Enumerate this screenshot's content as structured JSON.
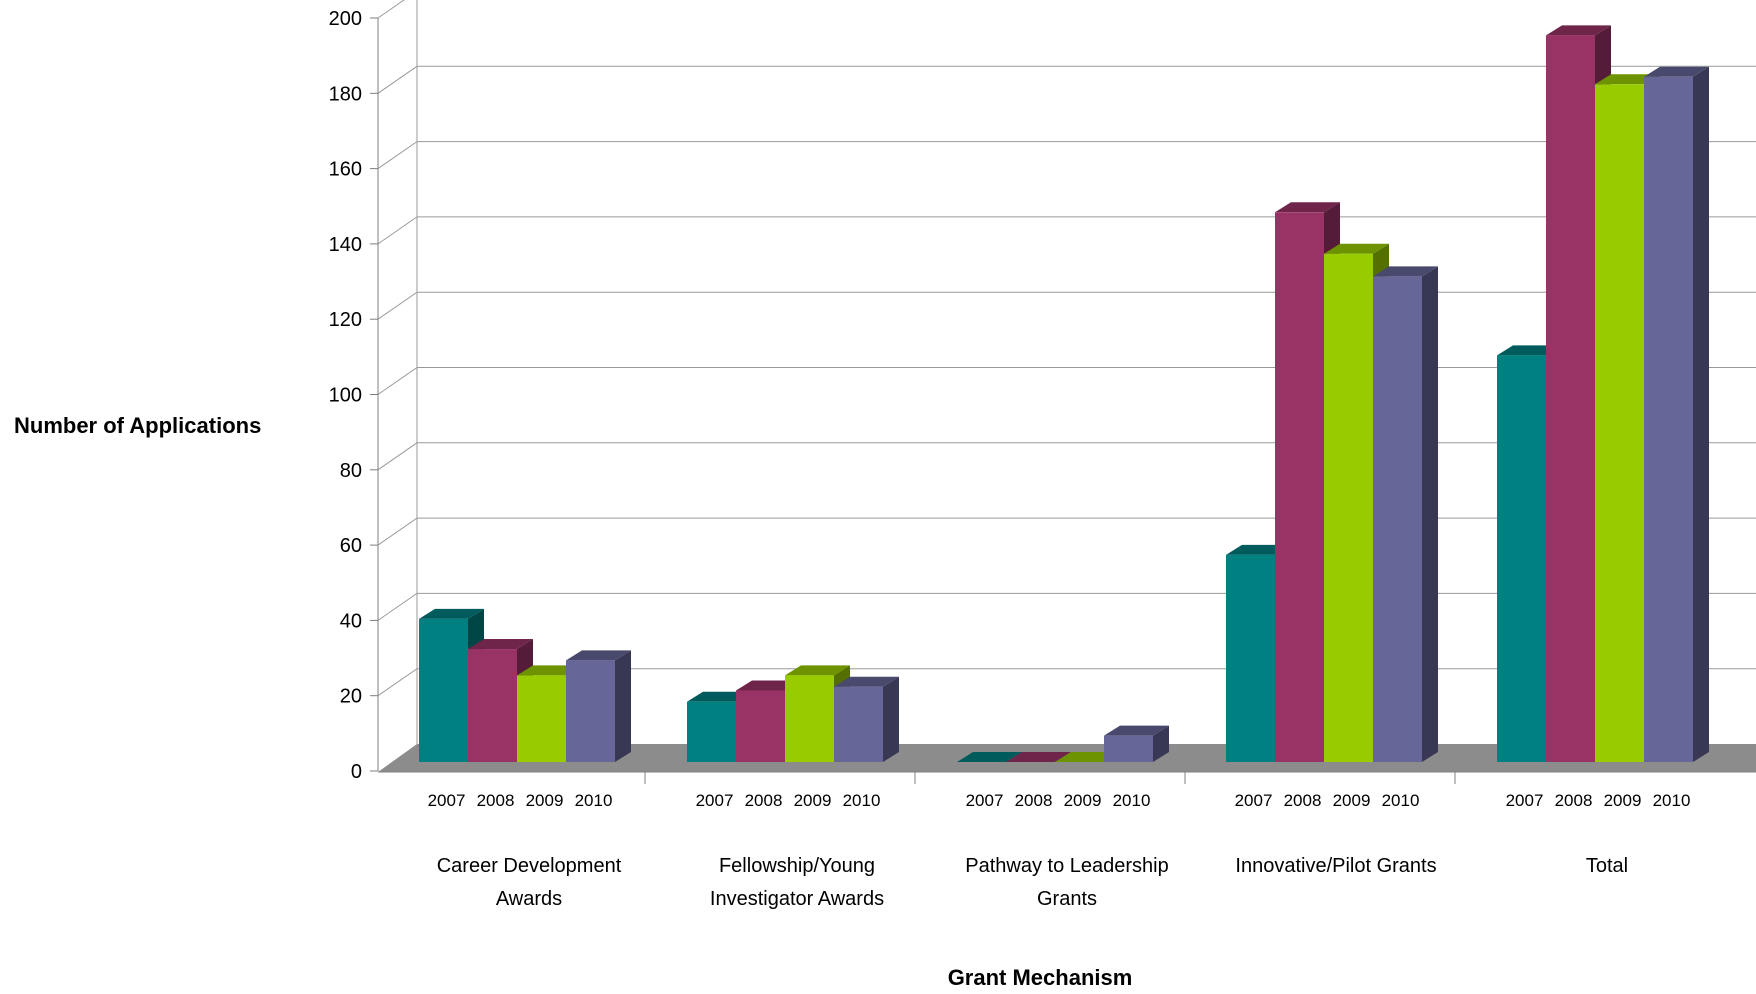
{
  "chart_data": {
    "type": "bar",
    "style": "3d-clustered",
    "xlabel": "Grant Mechanism",
    "ylabel": "Number of Applications",
    "ylim": [
      0,
      200
    ],
    "y_ticks": [
      "0",
      "20",
      "40",
      "60",
      "80",
      "100",
      "120",
      "140",
      "160",
      "180",
      "200"
    ],
    "grid": true,
    "categories": [
      {
        "lines": [
          "Career Development",
          "Awards"
        ]
      },
      {
        "lines": [
          "Fellowship/Young",
          "Investigator Awards"
        ]
      },
      {
        "lines": [
          "Pathway to Leadership",
          "Grants"
        ]
      },
      {
        "lines": [
          "Innovative/Pilot Grants"
        ]
      },
      {
        "lines": [
          "Total"
        ]
      }
    ],
    "years": [
      "2007",
      "2008",
      "2009",
      "2010"
    ],
    "series": [
      {
        "year": "2007",
        "color": "#008080",
        "values": [
          38,
          16,
          0,
          55,
          108
        ]
      },
      {
        "year": "2008",
        "color": "#993366",
        "values": [
          30,
          19,
          0,
          146,
          193
        ]
      },
      {
        "year": "2009",
        "color": "#99CC00",
        "values": [
          23,
          23,
          0,
          135,
          180
        ]
      },
      {
        "year": "2010",
        "color": "#666699",
        "values": [
          27,
          20,
          7,
          129,
          182
        ]
      }
    ]
  }
}
